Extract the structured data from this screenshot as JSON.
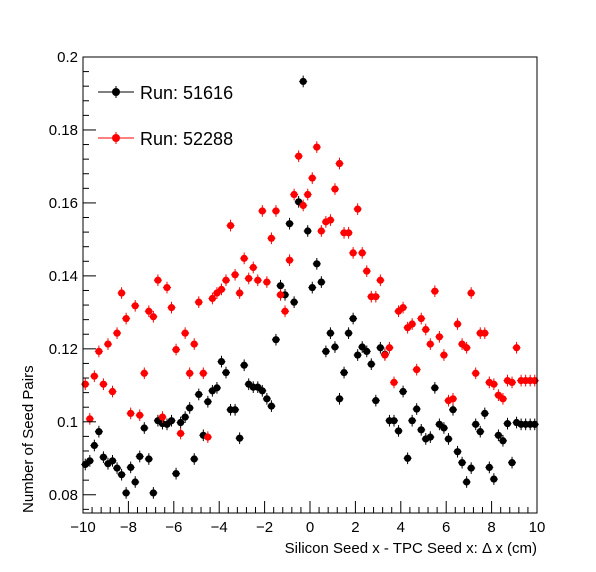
{
  "chart_data": {
    "type": "scatter",
    "xlabel": "Silicon Seed x - TPC Seed x:   Δ x (cm)",
    "ylabel": "Number of Seed Pairs",
    "xlim": [
      -10,
      10
    ],
    "ylim": [
      0.075,
      0.2
    ],
    "x_ticks": [
      -10,
      -8,
      -6,
      -4,
      -2,
      0,
      2,
      4,
      6,
      8,
      10
    ],
    "x_tick_labels": [
      "−10",
      "−8",
      "−6",
      "−4",
      "−2",
      "0",
      "2",
      "4",
      "6",
      "8",
      "10"
    ],
    "y_ticks": [
      0.08,
      0.1,
      0.12,
      0.14,
      0.16,
      0.18,
      0.2
    ],
    "y_tick_labels": [
      "0.08",
      "0.1",
      "0.12",
      "0.14",
      "0.16",
      "0.18",
      "0.2"
    ],
    "grid": false,
    "legend_position": "top-left",
    "x": [
      -9.9,
      -9.7,
      -9.5,
      -9.3,
      -9.1,
      -8.9,
      -8.7,
      -8.5,
      -8.3,
      -8.1,
      -7.9,
      -7.7,
      -7.5,
      -7.3,
      -7.1,
      -6.9,
      -6.7,
      -6.5,
      -6.3,
      -6.1,
      -5.9,
      -5.7,
      -5.5,
      -5.3,
      -5.1,
      -4.9,
      -4.7,
      -4.5,
      -4.3,
      -4.1,
      -3.9,
      -3.7,
      -3.5,
      -3.3,
      -3.1,
      -2.9,
      -2.7,
      -2.5,
      -2.3,
      -2.1,
      -1.9,
      -1.7,
      -1.5,
      -1.3,
      -1.1,
      -0.9,
      -0.7,
      -0.5,
      -0.3,
      -0.1,
      0.1,
      0.3,
      0.5,
      0.7,
      0.9,
      1.1,
      1.3,
      1.5,
      1.7,
      1.9,
      2.1,
      2.3,
      2.5,
      2.7,
      2.9,
      3.1,
      3.3,
      3.5,
      3.7,
      3.9,
      4.1,
      4.3,
      4.5,
      4.7,
      4.9,
      5.1,
      5.3,
      5.5,
      5.7,
      5.9,
      6.1,
      6.3,
      6.5,
      6.7,
      6.9,
      7.1,
      7.3,
      7.5,
      7.7,
      7.9,
      8.1,
      8.3,
      8.5,
      8.7,
      8.9,
      9.1,
      9.3,
      9.5,
      9.7,
      9.9
    ],
    "series": [
      {
        "name": "Run: 51616",
        "color": "#000000",
        "values": [
          0.0883,
          0.0893,
          0.0935,
          0.0973,
          0.0903,
          0.0885,
          0.0893,
          0.0873,
          0.0855,
          0.0805,
          0.0875,
          0.0835,
          0.0905,
          0.0983,
          0.0898,
          0.0805,
          0.1003,
          0.0995,
          0.0993,
          0.1003,
          0.0858,
          0.0998,
          0.1013,
          0.1038,
          0.0898,
          0.1075,
          0.0963,
          0.1055,
          0.1085,
          0.1093,
          0.1165,
          0.1135,
          0.1033,
          0.1033,
          0.0955,
          0.1155,
          0.1103,
          0.1095,
          0.1095,
          0.1085,
          0.1063,
          0.1043,
          0.1225,
          0.1373,
          0.1348,
          0.1543,
          0.1328,
          0.1603,
          0.1933,
          0.1523,
          0.1368,
          0.1433,
          0.1383,
          0.1193,
          0.1243,
          0.1205,
          0.1063,
          0.1135,
          0.1243,
          0.1283,
          0.1183,
          0.1205,
          0.1193,
          0.1158,
          0.1058,
          0.1203,
          0.1185,
          0.1003,
          0.1003,
          0.0975,
          0.1083,
          0.09,
          0.1003,
          0.1035,
          0.0978,
          0.0953,
          0.0958,
          0.1093,
          0.0993,
          0.0983,
          0.0953,
          0.1033,
          0.0918,
          0.0888,
          0.0835,
          0.0873,
          0.0993,
          0.0973,
          0.1023,
          0.0875,
          0.0843,
          0.0963,
          0.0948,
          0.0995,
          0.0888,
          0.0998,
          0.0993,
          0.0993,
          0.0993,
          0.0993
        ]
      },
      {
        "name": "Run: 52288",
        "color": "#ff0000",
        "values": [
          0.1103,
          0.1008,
          0.1125,
          0.1193,
          0.1103,
          0.1213,
          0.1083,
          0.1243,
          0.1353,
          0.1283,
          0.1023,
          0.1318,
          0.1018,
          0.1133,
          0.1303,
          0.1288,
          0.1388,
          0.1013,
          0.1368,
          0.1313,
          0.1198,
          0.0968,
          0.1243,
          0.1133,
          0.1213,
          0.1328,
          0.1133,
          0.0958,
          0.1338,
          0.1353,
          0.1363,
          0.1388,
          0.1538,
          0.1403,
          0.1353,
          0.1448,
          0.1393,
          0.1423,
          0.1388,
          0.1578,
          0.1383,
          0.1503,
          0.1578,
          0.1348,
          0.1303,
          0.1443,
          0.1623,
          0.1728,
          0.1593,
          0.1623,
          0.1668,
          0.1753,
          0.1523,
          0.1548,
          0.1553,
          0.1638,
          0.1708,
          0.1518,
          0.1518,
          0.1463,
          0.1583,
          0.1463,
          0.1413,
          0.1343,
          0.1343,
          0.1388,
          0.1183,
          0.1203,
          0.1108,
          0.1303,
          0.1313,
          0.1258,
          0.1268,
          0.1143,
          0.1283,
          0.1253,
          0.1213,
          0.1358,
          0.1233,
          0.1183,
          0.1058,
          0.1063,
          0.1268,
          0.1213,
          0.1203,
          0.1353,
          0.1133,
          0.1243,
          0.1243,
          0.1108,
          0.1103,
          0.1073,
          0.1063,
          0.1113,
          0.1108,
          0.1203,
          0.1113,
          0.1113,
          0.1113,
          0.1113
        ]
      }
    ]
  }
}
